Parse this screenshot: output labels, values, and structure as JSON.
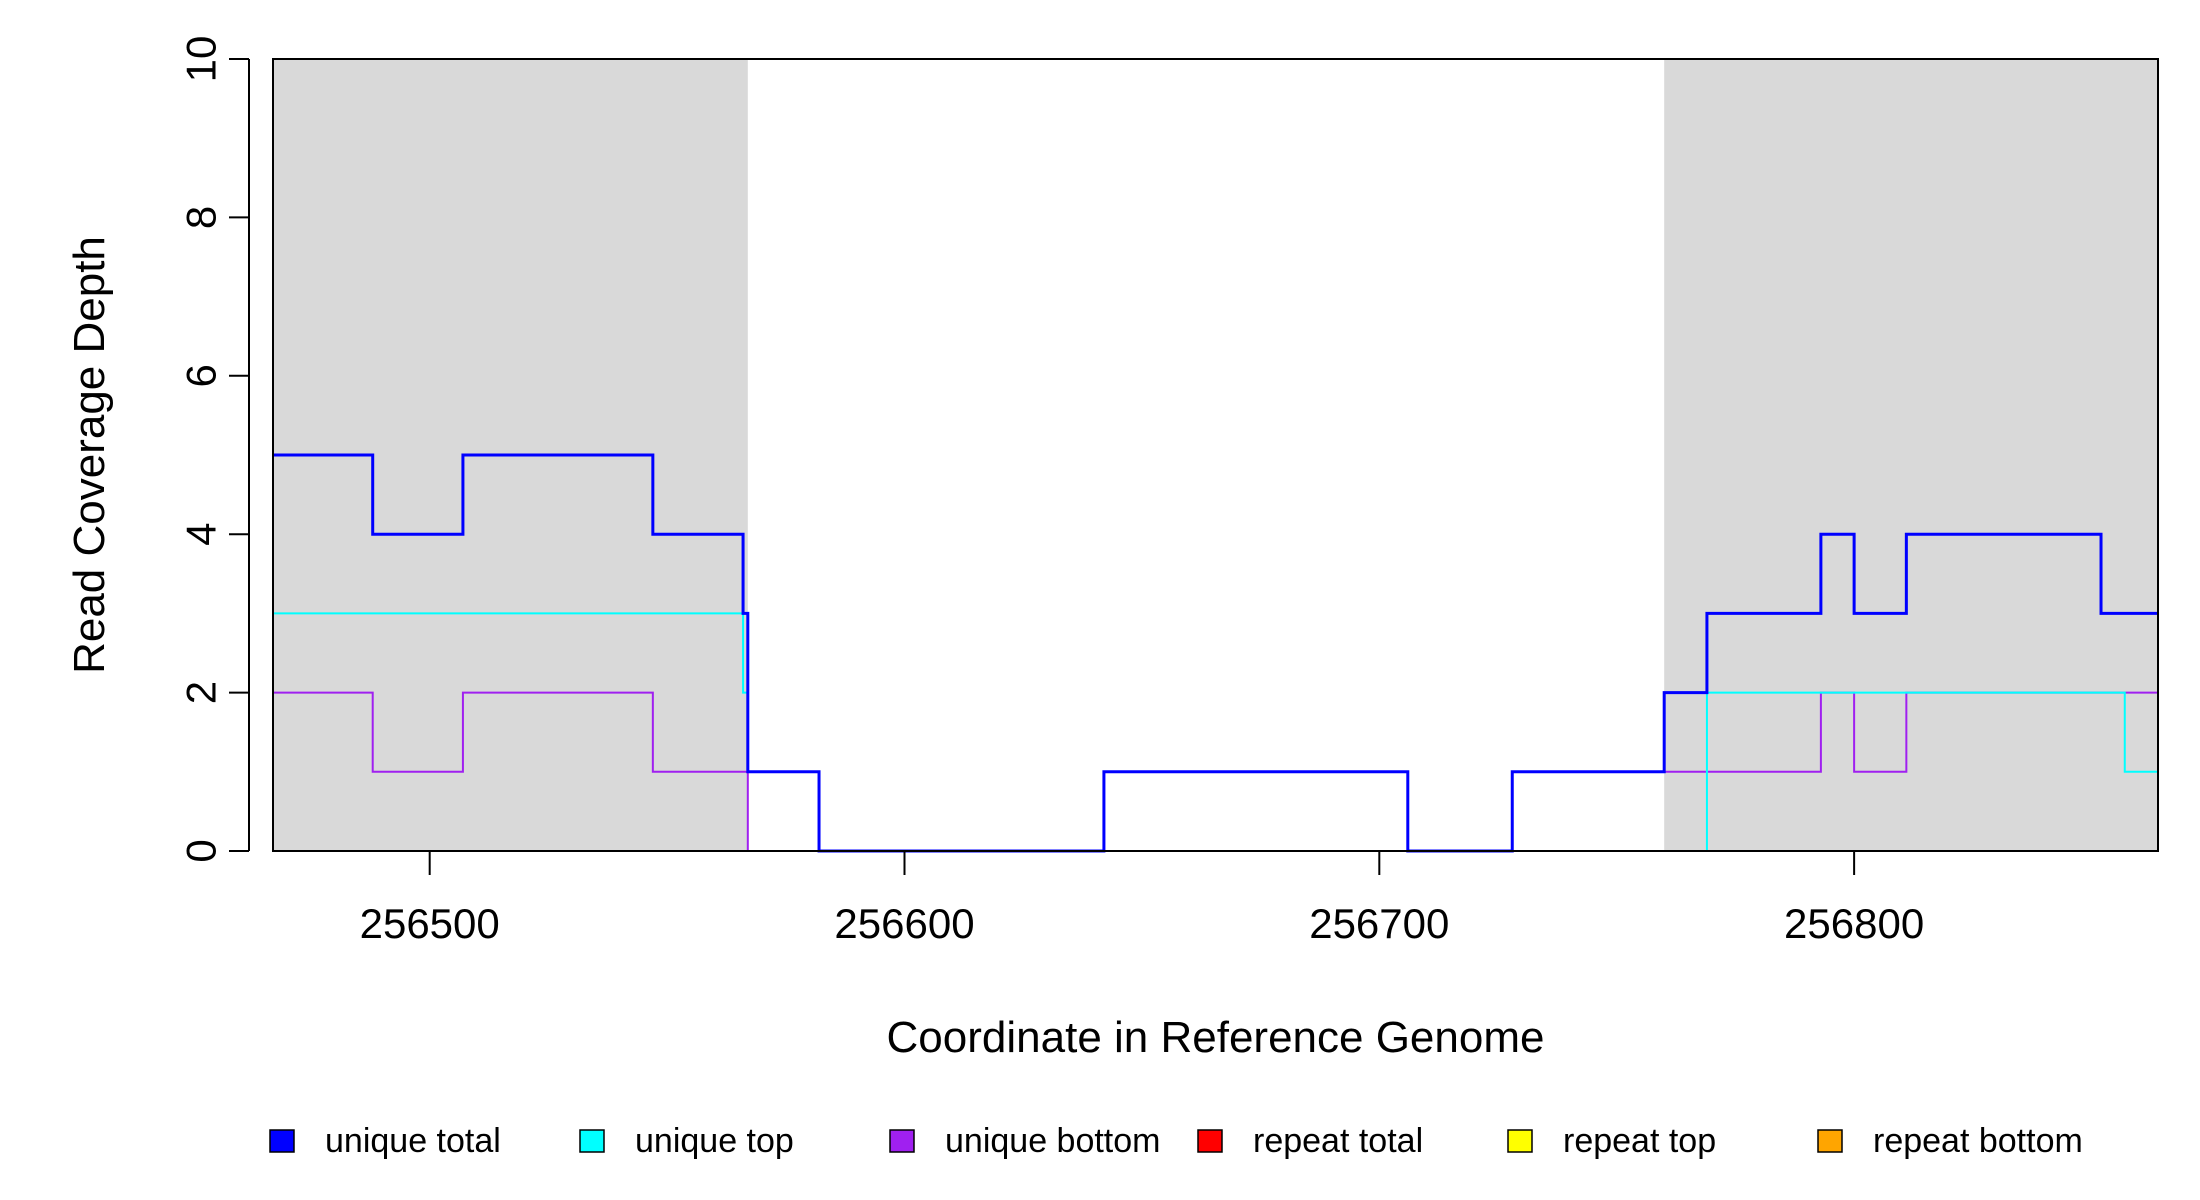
{
  "chart_data": {
    "type": "line",
    "step": true,
    "title": "",
    "xlabel": "Coordinate in Reference Genome",
    "ylabel": "Read Coverage Depth",
    "xlim": [
      256467,
      256864
    ],
    "ylim": [
      0,
      10
    ],
    "x_ticks": [
      256500,
      256600,
      256700,
      256800
    ],
    "x_tick_labels": [
      "256500",
      "256600",
      "256700",
      "256800"
    ],
    "y_ticks": [
      0,
      2,
      4,
      6,
      8,
      10
    ],
    "y_tick_labels": [
      "0",
      "2",
      "4",
      "6",
      "8",
      "10"
    ],
    "shaded_regions": [
      {
        "x0": 256467,
        "x1": 256567,
        "color": "#d9d9d9"
      },
      {
        "x0": 256760,
        "x1": 256864,
        "color": "#d9d9d9"
      }
    ],
    "legend_position": "bottom",
    "series": [
      {
        "name": "repeat total",
        "color": "#ff0000",
        "width": 2,
        "x": [
          256467,
          256864
        ],
        "y": [
          0,
          0
        ]
      },
      {
        "name": "repeat top",
        "color": "#ffff00",
        "width": 2,
        "x": [
          256467,
          256864
        ],
        "y": [
          0,
          0
        ]
      },
      {
        "name": "repeat bottom",
        "color": "#ffa500",
        "width": 2,
        "x": [
          256467,
          256864
        ],
        "y": [
          0,
          0
        ]
      },
      {
        "name": "unique bottom",
        "color": "#a020f0",
        "width": 2,
        "x": [
          256467,
          256488,
          256507,
          256547,
          256567,
          256642,
          256706,
          256728,
          256760,
          256793,
          256800,
          256811,
          256864
        ],
        "y": [
          2,
          1,
          2,
          1,
          0,
          1,
          0,
          1,
          1,
          2,
          1,
          2,
          2
        ]
      },
      {
        "name": "unique top",
        "color": "#00ffff",
        "width": 2,
        "x": [
          256467,
          256566,
          256567,
          256582,
          256760,
          256769,
          256857,
          256864
        ],
        "y": [
          3,
          2,
          1,
          0,
          0,
          2,
          1,
          1
        ]
      },
      {
        "name": "unique total",
        "color": "#0000ff",
        "width": 3,
        "x": [
          256467,
          256488,
          256507,
          256547,
          256566,
          256567,
          256582,
          256642,
          256706,
          256728,
          256760,
          256769,
          256793,
          256800,
          256811,
          256852,
          256864
        ],
        "y": [
          5,
          4,
          5,
          4,
          3,
          1,
          0,
          1,
          0,
          1,
          2,
          3,
          4,
          3,
          4,
          3,
          3
        ]
      }
    ],
    "legend": [
      {
        "label": "unique total",
        "color": "#0000ff"
      },
      {
        "label": "unique top",
        "color": "#00ffff"
      },
      {
        "label": "unique bottom",
        "color": "#a020f0"
      },
      {
        "label": "repeat total",
        "color": "#ff0000"
      },
      {
        "label": "repeat top",
        "color": "#ffff00"
      },
      {
        "label": "repeat bottom",
        "color": "#ffa500"
      }
    ]
  }
}
